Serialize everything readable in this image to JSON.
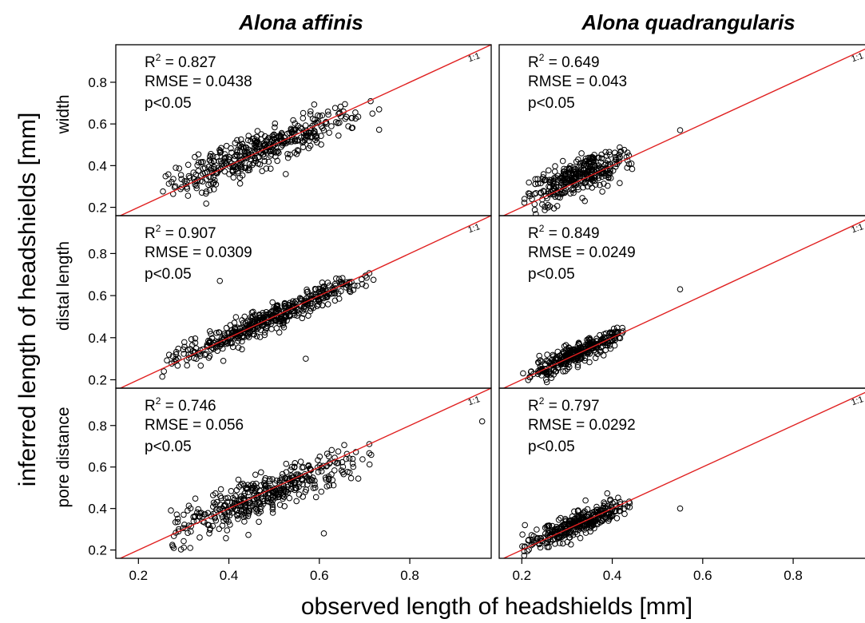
{
  "figure": {
    "ylabel": "inferred length of headshields [mm]",
    "xlabel": "observed length of headshields [mm]",
    "columns": [
      "Alona affinis",
      "Alona quadrangularis"
    ],
    "rows": [
      "width",
      "distal length",
      "pore distance"
    ],
    "line_tag": "1:1",
    "x_ticks": [
      "0.2",
      "0.4",
      "0.6",
      "0.8"
    ],
    "y_ticks": [
      "0.2",
      "0.4",
      "0.6",
      "0.8"
    ]
  },
  "chart_data": [
    {
      "type": "scatter",
      "species": "Alona affinis",
      "variable": "width",
      "r2_label": "R",
      "r2_sup": "2",
      "r2_value": " = 0.827",
      "rmse": "RMSE = 0.0438",
      "p": "p<0.05",
      "xlim": [
        0.15,
        0.98
      ],
      "ylim": [
        0.16,
        0.98
      ],
      "reference_line": "1:1",
      "cloud": {
        "x_range": [
          0.25,
          0.74
        ],
        "center": [
          0.47,
          0.47
        ],
        "slope": 0.83,
        "spread": 0.045,
        "n": 420
      },
      "extra_points": []
    },
    {
      "type": "scatter",
      "species": "Alona quadrangularis",
      "variable": "width",
      "r2_label": "R",
      "r2_sup": "2",
      "r2_value": " = 0.649",
      "rmse": "RMSE = 0.043",
      "p": "p<0.05",
      "xlim": [
        0.15,
        0.98
      ],
      "ylim": [
        0.16,
        0.98
      ],
      "reference_line": "1:1",
      "cloud": {
        "x_range": [
          0.2,
          0.45
        ],
        "center": [
          0.33,
          0.35
        ],
        "slope": 0.9,
        "spread": 0.045,
        "n": 330
      },
      "extra_points": [
        [
          0.55,
          0.57
        ]
      ]
    },
    {
      "type": "scatter",
      "species": "Alona affinis",
      "variable": "distal length",
      "r2_label": "R",
      "r2_sup": "2",
      "r2_value": " = 0.907",
      "rmse": "RMSE = 0.0309",
      "p": "p<0.05",
      "xlim": [
        0.15,
        0.98
      ],
      "ylim": [
        0.16,
        0.98
      ],
      "reference_line": "1:1",
      "cloud": {
        "x_range": [
          0.25,
          0.72
        ],
        "center": [
          0.48,
          0.48
        ],
        "slope": 0.92,
        "spread": 0.028,
        "n": 480
      },
      "extra_points": [
        [
          0.38,
          0.67
        ],
        [
          0.57,
          0.3
        ]
      ]
    },
    {
      "type": "scatter",
      "species": "Alona quadrangularis",
      "variable": "distal length",
      "r2_label": "R",
      "r2_sup": "2",
      "r2_value": " = 0.849",
      "rmse": "RMSE = 0.0249",
      "p": "p<0.05",
      "xlim": [
        0.15,
        0.98
      ],
      "ylim": [
        0.16,
        0.98
      ],
      "reference_line": "1:1",
      "cloud": {
        "x_range": [
          0.2,
          0.43
        ],
        "center": [
          0.32,
          0.32
        ],
        "slope": 0.92,
        "spread": 0.024,
        "n": 330
      },
      "extra_points": [
        [
          0.55,
          0.63
        ]
      ]
    },
    {
      "type": "scatter",
      "species": "Alona affinis",
      "variable": "pore distance",
      "r2_label": "R",
      "r2_sup": "2",
      "r2_value": " = 0.746",
      "rmse": "RMSE = 0.056",
      "p": "p<0.05",
      "xlim": [
        0.15,
        0.98
      ],
      "ylim": [
        0.16,
        0.98
      ],
      "reference_line": "1:1",
      "cloud": {
        "x_range": [
          0.26,
          0.72
        ],
        "center": [
          0.48,
          0.47
        ],
        "slope": 0.85,
        "spread": 0.05,
        "n": 420
      },
      "extra_points": [
        [
          0.96,
          0.82
        ],
        [
          0.61,
          0.28
        ]
      ]
    },
    {
      "type": "scatter",
      "species": "Alona quadrangularis",
      "variable": "pore distance",
      "r2_label": "R",
      "r2_sup": "2",
      "r2_value": " = 0.797",
      "rmse": "RMSE = 0.0292",
      "p": "p<0.05",
      "xlim": [
        0.15,
        0.98
      ],
      "ylim": [
        0.16,
        0.98
      ],
      "reference_line": "1:1",
      "cloud": {
        "x_range": [
          0.2,
          0.44
        ],
        "center": [
          0.32,
          0.32
        ],
        "slope": 0.88,
        "spread": 0.028,
        "n": 330
      },
      "extra_points": [
        [
          0.55,
          0.4
        ]
      ]
    }
  ]
}
